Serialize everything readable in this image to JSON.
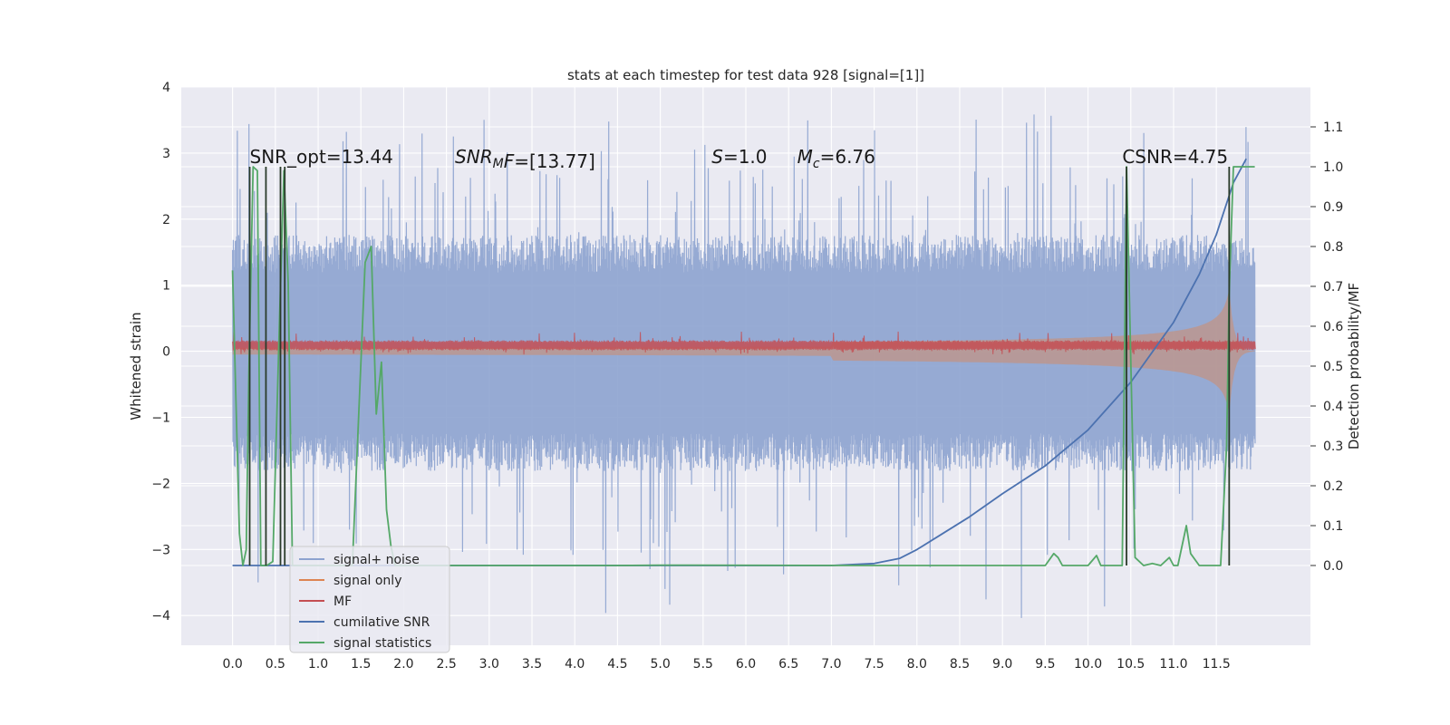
{
  "chart_data": {
    "type": "line",
    "title": "stats at each timestep for test data 928 [signal=[1]]",
    "xlabel": "",
    "ylabel": "Whitened strain",
    "ylabel_right": "Detection probability/MF",
    "x_ticks": [
      "0.0",
      "0.5",
      "1.0",
      "1.5",
      "2.0",
      "2.5",
      "3.0",
      "3.5",
      "4.0",
      "4.5",
      "5.0",
      "5.5",
      "6.0",
      "6.5",
      "7.0",
      "7.5",
      "8.0",
      "8.5",
      "9.0",
      "9.5",
      "10.0",
      "10.5",
      "11.0",
      "11.5"
    ],
    "y_ticks_left": [
      "4",
      "3",
      "2",
      "1",
      "0",
      "−1",
      "−2",
      "−3",
      "−4"
    ],
    "y_ticks_right": [
      "1.1",
      "1.0",
      "0.9",
      "0.8",
      "0.7",
      "0.6",
      "0.5",
      "0.4",
      "0.3",
      "0.2",
      "0.1",
      "0.0"
    ],
    "xlim": [
      -0.6,
      12.6
    ],
    "ylim_left": [
      -4.45,
      4.0
    ],
    "ylim_right": [
      -0.2,
      1.2
    ],
    "grid": true,
    "legend_position": "lower-left",
    "annotations": [
      {
        "text": "SNR_opt=13.44",
        "x": 0.2,
        "y": 2.85
      },
      {
        "text": "SNR",
        "sub": "M",
        "tail": "F=[13.77]",
        "italic": true,
        "x": 2.6,
        "y": 2.85
      },
      {
        "text": "S",
        "tail": "=1.0",
        "italic": true,
        "x": 5.6,
        "y": 2.85
      },
      {
        "text": "M",
        "sub": "c",
        "tail": "=6.76",
        "italic": true,
        "x": 6.6,
        "y": 2.85
      },
      {
        "text": "CSNR=4.75",
        "x": 10.4,
        "y": 2.85
      }
    ],
    "colors": {
      "signal_noise": "#8da3cf",
      "signal_only": "#dd8452",
      "mf": "#c44e52",
      "cumulative_snr": "#4c72b0",
      "signal_statistics": "#55a868",
      "dark_spike": "#2a3b2a",
      "plot_bg": "#eaeaf2"
    },
    "series": [
      {
        "name": "signal+ noise",
        "axis": "left",
        "style": "noise-band",
        "x_range": [
          0.0,
          11.95
        ],
        "band_upper": 1.6,
        "band_lower": -1.65,
        "peak_max": 3.6,
        "peak_min": -4.05
      },
      {
        "name": "signal only",
        "axis": "left",
        "style": "chirp",
        "x_range": [
          0.0,
          11.95
        ],
        "amp_start": 0.02,
        "amp_peak": 0.95,
        "peak_x": 11.65
      },
      {
        "name": "MF",
        "axis": "left",
        "style": "noise-band",
        "x_range": [
          0.0,
          11.95
        ],
        "band_upper": 0.16,
        "band_lower": 0.02,
        "peak_max": 0.3,
        "peak_min": -0.05
      },
      {
        "name": "cumilative SNR",
        "axis": "right",
        "x": [
          0.0,
          7.0,
          7.5,
          7.8,
          8.0,
          8.3,
          8.6,
          9.0,
          9.5,
          10.0,
          10.5,
          11.0,
          11.3,
          11.5,
          11.7,
          11.85
        ],
        "values": [
          0.0,
          0.0,
          0.005,
          0.018,
          0.04,
          0.08,
          0.12,
          0.18,
          0.25,
          0.34,
          0.46,
          0.61,
          0.73,
          0.83,
          0.96,
          1.02
        ]
      },
      {
        "name": "signal statistics",
        "axis": "right",
        "x": [
          0.0,
          0.08,
          0.12,
          0.16,
          0.19,
          0.24,
          0.29,
          0.33,
          0.4,
          0.47,
          0.55,
          0.6,
          0.65,
          0.7,
          0.75,
          0.8,
          1.0,
          1.4,
          1.55,
          1.62,
          1.68,
          1.74,
          1.8,
          1.85,
          1.9,
          2.0,
          4.5,
          5.0,
          7.5,
          9.5,
          9.6,
          9.65,
          9.7,
          9.75,
          9.8,
          10.0,
          10.1,
          10.15,
          10.2,
          10.4,
          10.45,
          10.55,
          10.65,
          10.75,
          10.85,
          10.95,
          11.0,
          11.05,
          11.15,
          11.2,
          11.3,
          11.55,
          11.62,
          11.65,
          11.7,
          11.95
        ],
        "values": [
          0.74,
          0.08,
          0.0,
          0.04,
          0.48,
          1.0,
          0.99,
          0.0,
          0.0,
          0.01,
          0.63,
          0.99,
          0.71,
          0.0,
          0.0,
          0.0,
          0.0,
          0.0,
          0.76,
          0.8,
          0.38,
          0.51,
          0.14,
          0.05,
          0.0,
          0.0,
          0.0,
          0.001,
          0.0,
          0.0,
          0.03,
          0.02,
          0.0,
          0.0,
          0.0,
          0.0,
          0.025,
          0.0,
          0.0,
          0.0,
          1.0,
          0.02,
          0.0,
          0.005,
          0.0,
          0.02,
          0.0,
          0.0,
          0.1,
          0.03,
          0.0,
          0.0,
          0.3,
          0.68,
          1.0,
          1.0
        ]
      },
      {
        "name": "",
        "axis": "right",
        "style": "spikes",
        "x": [
          0.2,
          0.39,
          0.56,
          0.61,
          10.45,
          11.65
        ],
        "values": [
          1.0,
          1.0,
          1.0,
          1.0,
          1.0,
          1.0
        ]
      }
    ]
  },
  "legend": {
    "items": [
      {
        "label": "signal+ noise"
      },
      {
        "label": "signal only"
      },
      {
        "label": "MF"
      },
      {
        "label": "cumilative SNR"
      },
      {
        "label": "signal statistics"
      }
    ]
  }
}
